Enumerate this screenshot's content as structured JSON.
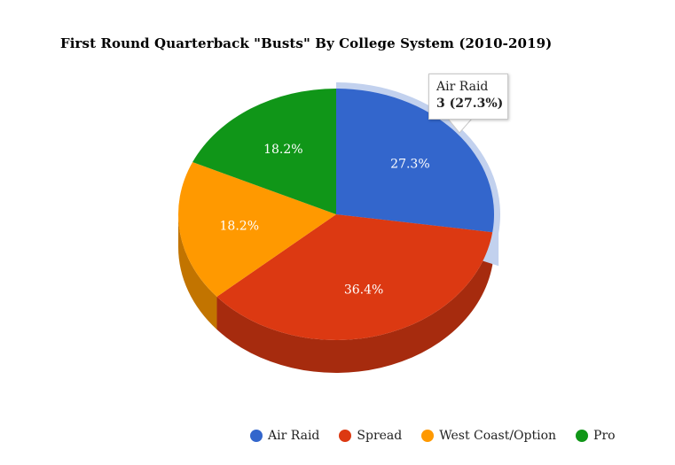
{
  "chart_data": {
    "type": "pie",
    "title": "First Round Quarterback \"Busts\" By College System (2010-2019)",
    "slices": [
      {
        "name": "Air Raid",
        "value": 3,
        "percent_label": "27.3%",
        "color": "#3366cc",
        "side_color": "#2a52a3"
      },
      {
        "name": "Spread",
        "value": 4,
        "percent_label": "36.4%",
        "color": "#dc3912",
        "side_color": "#a62b0e"
      },
      {
        "name": "West Coast/Option",
        "value": 2,
        "percent_label": "18.2%",
        "color": "#ff9900",
        "side_color": "#c27400"
      },
      {
        "name": "Pro",
        "value": 2,
        "percent_label": "18.2%",
        "color": "#109618",
        "side_color": "#0c7112"
      }
    ],
    "legend_position": "bottom",
    "highlighted_slice": "Air Raid"
  },
  "tooltip": {
    "label": "Air Raid",
    "value": "3 (27.3%)"
  }
}
